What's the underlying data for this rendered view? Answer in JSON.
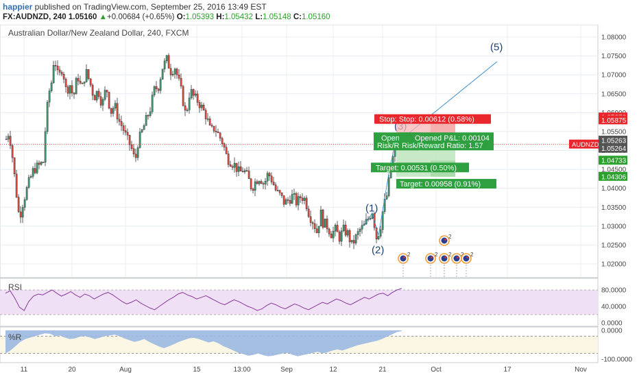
{
  "header": {
    "publisher": "happier",
    "published_text": " published on TradingView.com, September 25, 2016 13:49 EST",
    "symbol": "FX:AUDNZD, 240",
    "last": "1.05160",
    "change": "+0.00684 (+0.65%)",
    "open_label": "O:",
    "open": "1.05393",
    "high_label": "H:",
    "high": "1.05432",
    "low_label": "L:",
    "low": "1.05148",
    "close_label": "C:",
    "close": "1.05160"
  },
  "chart_data": {
    "type": "candlestick",
    "title": "Australian Dollar/New Zealand Dollar, 240, FXCM",
    "price_axis": {
      "ylim": [
        1.016,
        1.082
      ],
      "ticks": [
        "1.08000",
        "1.07500",
        "1.07000",
        "1.06500",
        "1.06000",
        "1.05500",
        "1.05000",
        "1.04500",
        "1.04000",
        "1.03500",
        "1.03000",
        "1.02500",
        "1.02000"
      ]
    },
    "x_ticks": [
      "11",
      "20",
      "Aug",
      "15",
      "13:00",
      "Sep",
      "12",
      "21",
      "Oct",
      "17",
      "Nov"
    ],
    "price_path": [
      [
        0,
        1.046
      ],
      [
        6,
        1.052
      ],
      [
        12,
        1.055
      ],
      [
        16,
        1.05
      ],
      [
        22,
        1.04
      ],
      [
        27,
        1.032
      ],
      [
        32,
        1.036
      ],
      [
        40,
        1.041
      ],
      [
        48,
        1.045
      ],
      [
        56,
        1.046
      ],
      [
        62,
        1.047
      ],
      [
        66,
        1.058
      ],
      [
        70,
        1.065
      ],
      [
        74,
        1.068
      ],
      [
        78,
        1.075
      ],
      [
        84,
        1.069
      ],
      [
        90,
        1.072
      ],
      [
        96,
        1.065
      ],
      [
        100,
        1.068
      ],
      [
        106,
        1.064
      ],
      [
        112,
        1.07
      ],
      [
        118,
        1.066
      ],
      [
        124,
        1.071
      ],
      [
        130,
        1.068
      ],
      [
        136,
        1.064
      ],
      [
        142,
        1.066
      ],
      [
        148,
        1.062
      ],
      [
        154,
        1.067
      ],
      [
        160,
        1.06
      ],
      [
        166,
        1.062
      ],
      [
        172,
        1.058
      ],
      [
        178,
        1.056
      ],
      [
        184,
        1.053
      ],
      [
        190,
        1.051
      ],
      [
        196,
        1.047
      ],
      [
        200,
        1.052
      ],
      [
        206,
        1.055
      ],
      [
        212,
        1.058
      ],
      [
        218,
        1.061
      ],
      [
        224,
        1.066
      ],
      [
        230,
        1.067
      ],
      [
        236,
        1.072
      ],
      [
        242,
        1.074
      ],
      [
        248,
        1.071
      ],
      [
        254,
        1.072
      ],
      [
        260,
        1.068
      ],
      [
        264,
        1.065
      ],
      [
        270,
        1.059
      ],
      [
        276,
        1.066
      ],
      [
        282,
        1.064
      ],
      [
        288,
        1.063
      ],
      [
        294,
        1.061
      ],
      [
        300,
        1.059
      ],
      [
        306,
        1.055
      ],
      [
        312,
        1.056
      ],
      [
        318,
        1.054
      ],
      [
        324,
        1.052
      ],
      [
        330,
        1.048
      ],
      [
        336,
        1.047
      ],
      [
        342,
        1.046
      ],
      [
        348,
        1.044
      ],
      [
        354,
        1.045
      ],
      [
        360,
        1.043
      ],
      [
        366,
        1.04
      ],
      [
        372,
        1.042
      ],
      [
        378,
        1.043
      ],
      [
        384,
        1.041
      ],
      [
        390,
        1.044
      ],
      [
        396,
        1.042
      ],
      [
        402,
        1.039
      ],
      [
        408,
        1.038
      ],
      [
        414,
        1.036
      ],
      [
        420,
        1.037
      ],
      [
        426,
        1.038
      ],
      [
        432,
        1.036
      ],
      [
        438,
        1.038
      ],
      [
        444,
        1.037
      ],
      [
        450,
        1.033
      ],
      [
        456,
        1.031
      ],
      [
        462,
        1.028
      ],
      [
        466,
        1.034
      ],
      [
        470,
        1.031
      ],
      [
        476,
        1.03
      ],
      [
        482,
        1.028
      ],
      [
        488,
        1.029
      ],
      [
        494,
        1.027
      ],
      [
        500,
        1.029
      ],
      [
        506,
        1.028
      ],
      [
        512,
        1.025
      ],
      [
        518,
        1.027
      ],
      [
        524,
        1.029
      ],
      [
        530,
        1.03
      ],
      [
        536,
        1.032
      ],
      [
        542,
        1.034
      ],
      [
        548,
        1.027
      ],
      [
        553,
        1.029
      ],
      [
        558,
        1.035
      ],
      [
        563,
        1.038
      ],
      [
        568,
        1.044
      ],
      [
        573,
        1.049
      ],
      [
        578,
        1.0516
      ]
    ],
    "current_price": {
      "label": "AUDNZD",
      "value": "1.05160"
    },
    "price_markers": [
      {
        "value": "1.05876",
        "color": "#e8262b",
        "y": 1.05876
      },
      {
        "value": "1.05875",
        "color": "#e8262b",
        "y": 1.058
      },
      {
        "value": "1.05263",
        "color": "#555555",
        "y": 1.05263
      },
      {
        "value": "1.05264",
        "color": "#555555",
        "y": 1.0505
      },
      {
        "value": "1.04733",
        "color": "#2ca02c",
        "y": 1.04733
      },
      {
        "value": "1.04306",
        "color": "#2ca02c",
        "y": 1.04306
      }
    ],
    "waves": [
      {
        "label": "(1)",
        "x": 543,
        "y": 1.0339
      },
      {
        "label": "(2)",
        "x": 552,
        "y": 1.0228
      },
      {
        "label": "(3)",
        "x": 585,
        "y": 1.0555
      },
      {
        "label": "(5)",
        "x": 725,
        "y": 1.0765
      }
    ],
    "wave_line": [
      [
        576,
        1.0516
      ],
      [
        725,
        1.0735
      ]
    ],
    "positions": [
      {
        "stop_text": "Stop:  Stop: 0.00612 (0.58%)",
        "opened_text_a": "Opened P&L: 0.00104",
        "opened_text_b": "Opened",
        "rr_text_a": "Risk/Reward Ratio: 1.57",
        "rr_text_b": "Risk/R",
        "target_text_a": "Target: 0.00531 (0.50%)",
        "target_text_b": "Target: 0.00958 (0.91%)"
      }
    ],
    "rsi": {
      "label": "RSI",
      "ylim": [
        0,
        100
      ],
      "ticks": [
        "80.0000",
        "40.0000",
        "0.0000"
      ],
      "upper_band": 80,
      "lower_band": 20,
      "values": [
        72,
        78,
        60,
        38,
        30,
        52,
        65,
        70,
        68,
        74,
        80,
        72,
        65,
        70,
        76,
        68,
        62,
        70,
        66,
        58,
        64,
        70,
        74,
        68,
        60,
        52,
        46,
        50,
        56,
        48,
        42,
        36,
        32,
        40,
        48,
        56,
        62,
        70,
        74,
        68,
        64,
        58,
        62,
        66,
        60,
        54,
        48,
        44,
        50,
        56,
        52,
        46,
        40,
        36,
        30,
        34,
        42,
        48,
        44,
        38,
        34,
        40,
        46,
        42,
        36,
        32,
        38,
        44,
        50,
        46,
        52,
        58,
        54,
        48,
        44,
        50,
        56,
        62,
        58,
        64,
        70,
        72,
        66,
        74,
        80,
        84
      ]
    },
    "williams_r": {
      "label": "%R",
      "ylim": [
        -100,
        0
      ],
      "ticks": [
        "0.0000",
        "-100.0000"
      ],
      "values": [
        -80,
        -70,
        -55,
        -40,
        -30,
        -25,
        -20,
        -15,
        -10,
        -12,
        -20,
        -18,
        -25,
        -30,
        -28,
        -22,
        -20,
        -24,
        -30,
        -26,
        -20,
        -18,
        -15,
        -20,
        -28,
        -34,
        -40,
        -36,
        -30,
        -40,
        -48,
        -56,
        -62,
        -55,
        -48,
        -40,
        -34,
        -28,
        -26,
        -30,
        -36,
        -42,
        -38,
        -45,
        -55,
        -62,
        -70,
        -78,
        -82,
        -88,
        -85,
        -80,
        -86,
        -90,
        -88,
        -84,
        -80,
        -78,
        -85,
        -90,
        -86,
        -82,
        -78,
        -74,
        -80,
        -76,
        -70,
        -66,
        -70,
        -64,
        -58,
        -52,
        -48,
        -44,
        -40,
        -36,
        -30,
        -22,
        -14,
        -6,
        -2
      ]
    },
    "events": [
      {
        "label": "2",
        "x": 588,
        "y_off": 0,
        "flag": true
      },
      {
        "label": "2",
        "x": 628,
        "y_off": 0,
        "flag": true
      },
      {
        "label": "2",
        "x": 648,
        "y_off": -26,
        "flag": true
      },
      {
        "label": "2",
        "x": 648,
        "y_off": 0,
        "flag": true
      },
      {
        "label": "2",
        "x": 666,
        "y_off": 0,
        "flag": true
      },
      {
        "label": "2",
        "x": 680,
        "y_off": 0,
        "flag": true
      }
    ],
    "colors": {
      "up": "#3d9970",
      "down": "#e0483c",
      "rsi_line": "#8a3a9e",
      "rsi_band": "#efe0f5",
      "wr_fill": "#9ab8e0",
      "grid": "#e8ecf1",
      "current_line": "#e8262b",
      "wave_line": "#3a8dc8"
    }
  }
}
